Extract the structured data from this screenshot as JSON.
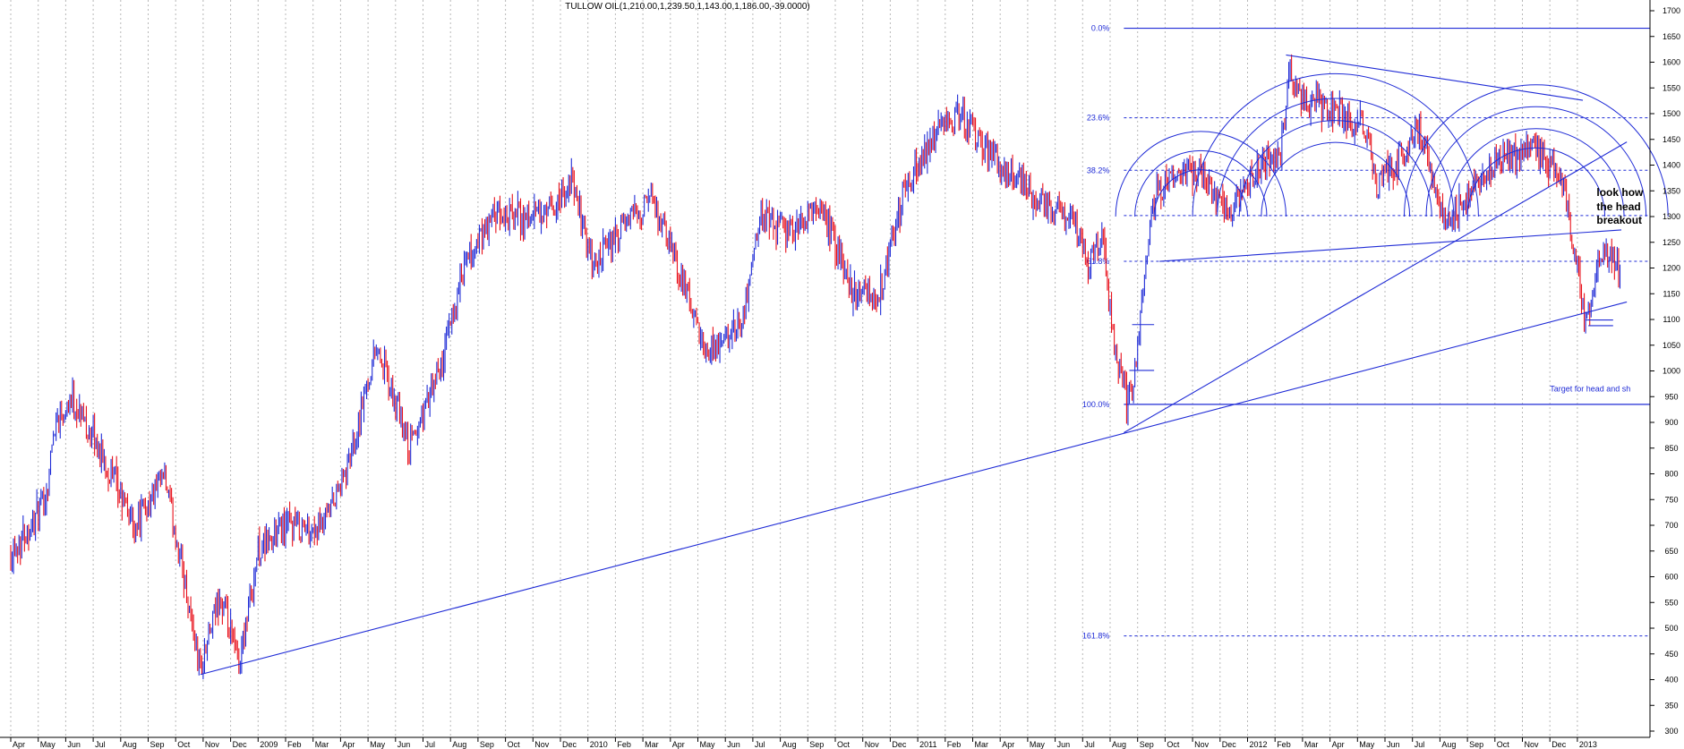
{
  "chart_data": {
    "type": "bar",
    "title": "TULLOW OIL(1,210.00,1,239.50,1,143.00,1,186.00,-39.0000)",
    "subtitle": "",
    "xlabel": "",
    "ylabel": "",
    "ylim": [
      300,
      1700
    ],
    "y_ticks": [
      300,
      350,
      400,
      450,
      500,
      550,
      600,
      650,
      700,
      750,
      800,
      850,
      900,
      950,
      1000,
      1050,
      1100,
      1150,
      1200,
      1250,
      1300,
      1350,
      1400,
      1450,
      1500,
      1550,
      1600,
      1650,
      1700
    ],
    "x_tick_labels": [
      "Apr",
      "May",
      "Jun",
      "Jul",
      "Aug",
      "Sep",
      "Oct",
      "Nov",
      "Dec",
      "2009",
      "Feb",
      "Mar",
      "Apr",
      "May",
      "Jun",
      "Jul",
      "Aug",
      "Sep",
      "Oct",
      "Nov",
      "Dec",
      "2010",
      "Feb",
      "Mar",
      "Apr",
      "May",
      "Jun",
      "Jul",
      "Aug",
      "Sep",
      "Oct",
      "Nov",
      "Dec",
      "2011",
      "Feb",
      "Mar",
      "Apr",
      "May",
      "Jun",
      "Jul",
      "Aug",
      "Sep",
      "Oct",
      "Nov",
      "Dec",
      "2012",
      "Feb",
      "Mar",
      "Apr",
      "May",
      "Jun",
      "Jul",
      "Aug",
      "Sep",
      "Oct",
      "Nov",
      "Dec",
      "2013"
    ],
    "grid": "vertical dotted",
    "legend": "none",
    "up_color": "#1f2bd6",
    "down_color": "#e8101a",
    "overlay_color": "#1f2bd6",
    "price_path": [
      [
        0,
        650
      ],
      [
        1,
        720
      ],
      [
        1.3,
        760
      ],
      [
        1.6,
        900
      ],
      [
        2.2,
        950
      ],
      [
        3,
        870
      ],
      [
        4.5,
        700
      ],
      [
        5.6,
        790
      ],
      [
        6.3,
        600
      ],
      [
        6.9,
        420
      ],
      [
        7.6,
        560
      ],
      [
        8.3,
        430
      ],
      [
        9.0,
        650
      ],
      [
        10.0,
        700
      ],
      [
        11.3,
        690
      ],
      [
        12.2,
        800
      ],
      [
        13.3,
        1050
      ],
      [
        14.5,
        850
      ],
      [
        15.6,
        1000
      ],
      [
        16.5,
        1200
      ],
      [
        17.6,
        1300
      ],
      [
        19.5,
        1300
      ],
      [
        20.4,
        1370
      ],
      [
        21.2,
        1200
      ],
      [
        22.6,
        1300
      ],
      [
        23.3,
        1330
      ],
      [
        24.3,
        1200
      ],
      [
        25.3,
        1020
      ],
      [
        26.6,
        1100
      ],
      [
        27.3,
        1300
      ],
      [
        28.3,
        1270
      ],
      [
        29.5,
        1320
      ],
      [
        30.6,
        1160
      ],
      [
        31.6,
        1150
      ],
      [
        32.5,
        1350
      ],
      [
        33.5,
        1450
      ],
      [
        34.6,
        1500
      ],
      [
        35.6,
        1420
      ],
      [
        36.6,
        1380
      ],
      [
        37.6,
        1320
      ],
      [
        38.6,
        1300
      ],
      [
        39.2,
        1210
      ],
      [
        39.7,
        1260
      ],
      [
        40.2,
        1030
      ],
      [
        40.6,
        950
      ],
      [
        40.9,
        1000
      ],
      [
        41.3,
        1230
      ],
      [
        41.7,
        1350
      ],
      [
        42.4,
        1400
      ],
      [
        43.3,
        1380
      ],
      [
        44.3,
        1300
      ],
      [
        45.3,
        1390
      ],
      [
        46.2,
        1430
      ],
      [
        46.5,
        1570
      ],
      [
        47.4,
        1520
      ],
      [
        48.3,
        1500
      ],
      [
        49.3,
        1470
      ],
      [
        49.7,
        1360
      ],
      [
        50.6,
        1420
      ],
      [
        51.3,
        1470
      ],
      [
        52.1,
        1290
      ],
      [
        53.0,
        1320
      ],
      [
        53.6,
        1390
      ],
      [
        54.5,
        1420
      ],
      [
        55.5,
        1430
      ],
      [
        56.4,
        1380
      ],
      [
        57.0,
        1200
      ],
      [
        57.3,
        1100
      ],
      [
        57.8,
        1220
      ],
      [
        58.3,
        1230
      ],
      [
        58.6,
        1160
      ]
    ],
    "fibonacci_levels": [
      {
        "label": "0.0%",
        "value": 1666
      },
      {
        "label": "23.6%",
        "value": 1492
      },
      {
        "label": "38.2%",
        "value": 1390
      },
      {
        "label": "",
        "value": 1302
      },
      {
        "label": "61.8%",
        "value": 1213
      },
      {
        "label": "100.0%",
        "value": 935
      },
      {
        "label": "161.8%",
        "value": 485
      }
    ],
    "trendlines": [
      {
        "from": [
          6.9,
          410
        ],
        "to": [
          58.8,
          1134
        ]
      },
      {
        "from": [
          40.5,
          880
        ],
        "to": [
          58.8,
          1445
        ]
      },
      {
        "from": [
          41.8,
          1213
        ],
        "to": [
          58.6,
          1274
        ]
      },
      {
        "from": [
          46.4,
          1614
        ],
        "to": [
          57.2,
          1526
        ]
      }
    ],
    "ref_lines": [
      {
        "from": [
          40.8,
          1090
        ],
        "to": [
          41.6,
          1090
        ]
      },
      {
        "from": [
          40.7,
          1001
        ],
        "to": [
          41.6,
          1001
        ]
      },
      {
        "from": [
          57.3,
          1099
        ],
        "to": [
          58.3,
          1099
        ]
      },
      {
        "from": [
          57.4,
          1088
        ],
        "to": [
          58.3,
          1088
        ]
      }
    ],
    "arc_centers": [
      {
        "x": 43.3,
        "y": 1300,
        "r_days": [
          1.7,
          2.4,
          3.1
        ]
      },
      {
        "x": 48.2,
        "y": 1300,
        "r_days": [
          2.7,
          3.5,
          4.3,
          5.2
        ]
      },
      {
        "x": 55.5,
        "y": 1300,
        "r_days": [
          2.5,
          3.2,
          4.0,
          4.8
        ]
      }
    ],
    "annotations": [
      {
        "text": "look how",
        "x": 57.7,
        "y": 1340
      },
      {
        "text": "the head",
        "x": 57.7,
        "y": 1312
      },
      {
        "text": "breakout",
        "x": 57.7,
        "y": 1286
      },
      {
        "text": "Target for head and sh",
        "x": 56.0,
        "y": 960
      }
    ]
  }
}
